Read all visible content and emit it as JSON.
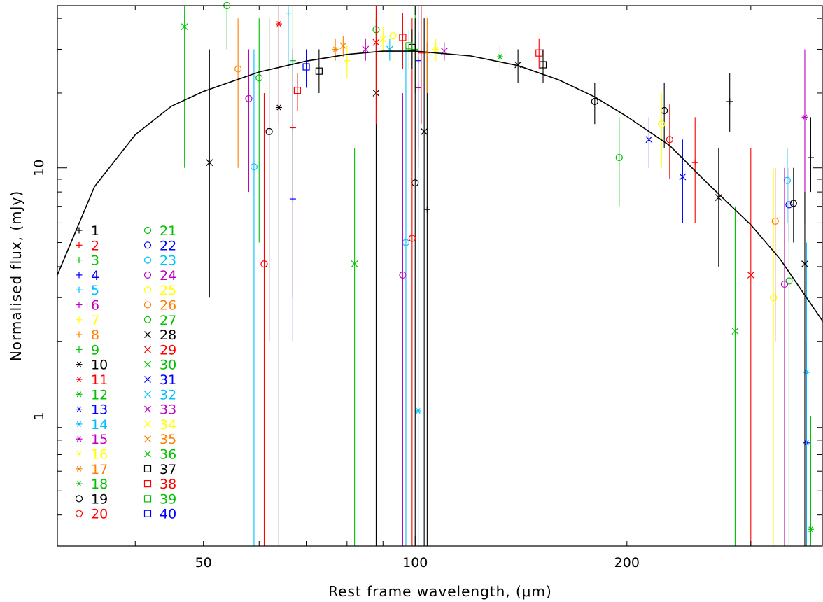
{
  "chart_data": {
    "type": "scatter",
    "xlabel": "Rest frame wavelength, (μm)",
    "ylabel": "Normalised flux, (mJy)",
    "x_scale": "log",
    "y_scale": "log",
    "xlim": [
      31,
      380
    ],
    "ylim": [
      0.3,
      45
    ],
    "x_tick_labels": [
      {
        "value": 50,
        "label": "50"
      },
      {
        "value": 100,
        "label": "100"
      },
      {
        "value": 200,
        "label": "200"
      }
    ],
    "y_tick_labels": [
      {
        "value": 1,
        "label": "1"
      },
      {
        "value": 10,
        "label": "10"
      }
    ],
    "grid": false,
    "legend_position": "bottom-left",
    "fit_curve": {
      "description": "model SED",
      "points": [
        [
          31,
          3.7
        ],
        [
          35,
          8.4
        ],
        [
          40,
          13.6
        ],
        [
          45,
          17.7
        ],
        [
          50,
          20.3
        ],
        [
          60,
          24.3
        ],
        [
          70,
          26.9
        ],
        [
          80,
          28.6
        ],
        [
          90,
          29.5
        ],
        [
          100,
          29.5
        ],
        [
          120,
          28.2
        ],
        [
          140,
          25.8
        ],
        [
          160,
          22.6
        ],
        [
          180,
          19.3
        ],
        [
          200,
          16.1
        ],
        [
          230,
          12.3
        ],
        [
          260,
          8.7
        ],
        [
          300,
          5.9
        ],
        [
          330,
          4.3
        ],
        [
          380,
          2.4
        ]
      ]
    },
    "series": [
      {
        "name": "1",
        "marker": "plus",
        "color": "#000000",
        "points": [
          [
            104,
            6.8,
            0.3,
            32
          ],
          [
            280,
            18.5,
            14,
            24
          ],
          [
            365,
            11,
            8,
            16
          ]
        ]
      },
      {
        "name": "2",
        "marker": "plus",
        "color": "#ff0000",
        "points": [
          [
            67,
            14.5,
            3,
            30
          ],
          [
            102,
            29,
            15,
            45
          ],
          [
            250,
            10.5,
            6,
            16
          ]
        ]
      },
      {
        "name": "3",
        "marker": "plus",
        "color": "#00c000",
        "points": [
          [
            67,
            27,
            8,
            45
          ]
        ]
      },
      {
        "name": "4",
        "marker": "plus",
        "color": "#0000ff",
        "points": [
          [
            67,
            7.5,
            2,
            30
          ],
          [
            101,
            27,
            12,
            45
          ]
        ]
      },
      {
        "name": "5",
        "marker": "plus",
        "color": "#00c0ff",
        "points": [
          [
            66,
            42,
            25,
            45
          ]
        ]
      },
      {
        "name": "6",
        "marker": "plus",
        "color": "#c000c0",
        "points": [
          [
            101,
            21,
            10,
            35
          ]
        ]
      },
      {
        "name": "7",
        "marker": "plus",
        "color": "#ffff00",
        "points": [
          [
            80,
            27,
            23,
            31
          ]
        ]
      },
      {
        "name": "8",
        "marker": "plus",
        "color": "#ff8000",
        "points": [
          [
            104,
            29,
            20,
            40
          ]
        ]
      },
      {
        "name": "9",
        "marker": "plus",
        "color": "#00c000",
        "points": [
          [
            100,
            30,
            20,
            45
          ]
        ]
      },
      {
        "name": "10",
        "marker": "star",
        "color": "#000000",
        "points": [
          [
            64,
            17.5,
            0.3,
            45
          ]
        ]
      },
      {
        "name": "11",
        "marker": "star",
        "color": "#ff0000",
        "points": [
          [
            64,
            38,
            15,
            45
          ]
        ]
      },
      {
        "name": "12",
        "marker": "star",
        "color": "#00c000",
        "points": [
          [
            132,
            28,
            25,
            31
          ]
        ]
      },
      {
        "name": "13",
        "marker": "star",
        "color": "#0000ff",
        "points": [
          [
            360,
            0.78,
            0.3,
            2
          ]
        ]
      },
      {
        "name": "14",
        "marker": "star",
        "color": "#00c0ff",
        "points": [
          [
            101,
            1.05,
            0.3,
            20
          ],
          [
            360,
            1.5,
            0.3,
            5
          ]
        ]
      },
      {
        "name": "15",
        "marker": "star",
        "color": "#c000c0",
        "points": [
          [
            358,
            16,
            6,
            30
          ]
        ]
      },
      {
        "name": "16",
        "marker": "star",
        "color": "#ffff00",
        "points": [
          [
            107,
            30,
            27,
            33
          ]
        ]
      },
      {
        "name": "17",
        "marker": "star",
        "color": "#ff8000",
        "points": [
          [
            77,
            30,
            27,
            33
          ]
        ]
      },
      {
        "name": "18",
        "marker": "star",
        "color": "#00c000",
        "points": [
          [
            365,
            0.35,
            0.3,
            1
          ]
        ]
      },
      {
        "name": "19",
        "marker": "circle",
        "color": "#000000",
        "points": [
          [
            62,
            14,
            2,
            40
          ],
          [
            100,
            8.7,
            0.3,
            40
          ],
          [
            180,
            18.5,
            15,
            22
          ],
          [
            226,
            17,
            12,
            22
          ],
          [
            345,
            7.2,
            5,
            10
          ]
        ]
      },
      {
        "name": "20",
        "marker": "circle",
        "color": "#ff0000",
        "points": [
          [
            61,
            4.1,
            0.3,
            20
          ],
          [
            99,
            5.2,
            0.3,
            40
          ],
          [
            230,
            13,
            9,
            18
          ]
        ]
      },
      {
        "name": "21",
        "marker": "circle",
        "color": "#00c000",
        "points": [
          [
            54,
            45,
            30,
            45
          ],
          [
            88,
            36,
            20,
            45
          ],
          [
            195,
            11,
            7,
            16
          ],
          [
            340,
            3.5,
            0.3,
            10
          ]
        ]
      },
      {
        "name": "22",
        "marker": "circle",
        "color": "#0000ff",
        "points": [
          [
            340,
            7.1,
            5,
            10
          ]
        ]
      },
      {
        "name": "23",
        "marker": "circle",
        "color": "#00c0ff",
        "points": [
          [
            59,
            10.1,
            0.3,
            30
          ],
          [
            97,
            5,
            0.3,
            30
          ],
          [
            338,
            8.9,
            6,
            12
          ]
        ]
      },
      {
        "name": "24",
        "marker": "circle",
        "color": "#c000c0",
        "points": [
          [
            58,
            19,
            8,
            30
          ],
          [
            96,
            3.7,
            0.3,
            20
          ],
          [
            335,
            3.4,
            0.3,
            10
          ]
        ]
      },
      {
        "name": "25",
        "marker": "circle",
        "color": "#ffff00",
        "points": [
          [
            93,
            34,
            25,
            45
          ],
          [
            224,
            15,
            10,
            20
          ],
          [
            323,
            3,
            0.3,
            10
          ]
        ]
      },
      {
        "name": "26",
        "marker": "circle",
        "color": "#ff8000",
        "points": [
          [
            56,
            25,
            10,
            40
          ],
          [
            325,
            6.1,
            2,
            10
          ]
        ]
      },
      {
        "name": "27",
        "marker": "circle",
        "color": "#00c000",
        "points": [
          [
            60,
            23,
            5,
            40
          ]
        ]
      },
      {
        "name": "28",
        "marker": "x",
        "color": "#000000",
        "points": [
          [
            51,
            10.5,
            3,
            30
          ],
          [
            88,
            20,
            0.3,
            40
          ],
          [
            103,
            14,
            0.3,
            40
          ],
          [
            140,
            26,
            22,
            30
          ],
          [
            270,
            7.6,
            4,
            12
          ],
          [
            358,
            4.1,
            0.3,
            8
          ]
        ]
      },
      {
        "name": "29",
        "marker": "x",
        "color": "#ff0000",
        "points": [
          [
            88,
            32,
            15,
            45
          ],
          [
            300,
            3.7,
            0.3,
            12
          ]
        ]
      },
      {
        "name": "30",
        "marker": "x",
        "color": "#00c000",
        "points": [
          [
            82,
            4.1,
            0.3,
            12
          ],
          [
            285,
            2.2,
            0.3,
            7
          ]
        ]
      },
      {
        "name": "31",
        "marker": "x",
        "color": "#0000ff",
        "points": [
          [
            215,
            13,
            10,
            16
          ],
          [
            240,
            9.2,
            6,
            13
          ]
        ]
      },
      {
        "name": "32",
        "marker": "x",
        "color": "#00c0ff",
        "points": [
          [
            92,
            30,
            27,
            33
          ]
        ]
      },
      {
        "name": "33",
        "marker": "x",
        "color": "#c000c0",
        "points": [
          [
            85,
            30,
            27,
            33
          ],
          [
            110,
            29.5,
            27,
            32
          ]
        ]
      },
      {
        "name": "34",
        "marker": "x",
        "color": "#ffff00",
        "points": [
          [
            90,
            33,
            29,
            37
          ]
        ]
      },
      {
        "name": "35",
        "marker": "x",
        "color": "#ff8000",
        "points": [
          [
            79,
            31,
            28,
            34
          ]
        ]
      },
      {
        "name": "36",
        "marker": "x",
        "color": "#00c000",
        "points": [
          [
            47,
            37,
            10,
            45
          ]
        ]
      },
      {
        "name": "37",
        "marker": "square",
        "color": "#000000",
        "points": [
          [
            73,
            24.5,
            20,
            30
          ],
          [
            99,
            30.5,
            25,
            36
          ],
          [
            152,
            26,
            22,
            30
          ]
        ]
      },
      {
        "name": "38",
        "marker": "square",
        "color": "#ff0000",
        "points": [
          [
            68,
            20.5,
            17,
            24
          ],
          [
            96,
            33.5,
            25,
            42
          ],
          [
            150,
            29,
            25,
            33
          ]
        ]
      },
      {
        "name": "39",
        "marker": "square",
        "color": "#00c000",
        "points": [
          [
            98,
            31,
            25,
            36
          ]
        ]
      },
      {
        "name": "40",
        "marker": "square",
        "color": "#0000ff",
        "points": [
          [
            70,
            25.5,
            21,
            30
          ]
        ]
      }
    ]
  }
}
